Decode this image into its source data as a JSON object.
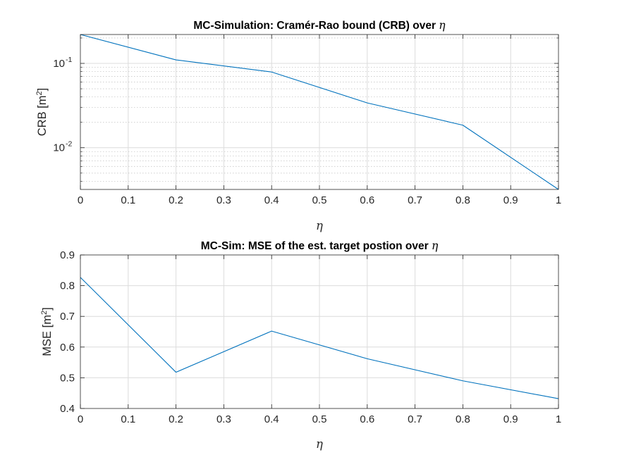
{
  "chart_data": [
    {
      "type": "line",
      "title": "MC-Simulation: Cramér-Rao bound (CRB) over",
      "title_symbol": "η",
      "xlabel": "η",
      "ylabel": "CRB [m",
      "ylabel_sup": "2",
      "ylabel_end": "]",
      "yscale": "log",
      "xlim": [
        0,
        1
      ],
      "ylim": [
        0.0032,
        0.22
      ],
      "x_ticks": [
        "0",
        "0.1",
        "0.2",
        "0.3",
        "0.4",
        "0.5",
        "0.6",
        "0.7",
        "0.8",
        "0.9",
        "1"
      ],
      "y_ticks": [
        {
          "base": "10",
          "exp": "-1"
        },
        {
          "base": "10",
          "exp": "-2"
        }
      ],
      "grid": true,
      "minor_grid": true,
      "line_color": "#0072bd",
      "x": [
        0,
        0.2,
        0.4,
        0.6,
        0.8,
        1.0
      ],
      "y": [
        0.22,
        0.11,
        0.079,
        0.034,
        0.0185,
        0.0032
      ]
    },
    {
      "type": "line",
      "title": "MC-Sim: MSE of the est. target postion over",
      "title_symbol": "η",
      "xlabel": "η",
      "ylabel": "MSE [m",
      "ylabel_sup": "2",
      "ylabel_end": "]",
      "yscale": "linear",
      "xlim": [
        0,
        1
      ],
      "ylim": [
        0.4,
        0.9
      ],
      "x_ticks": [
        "0",
        "0.1",
        "0.2",
        "0.3",
        "0.4",
        "0.5",
        "0.6",
        "0.7",
        "0.8",
        "0.9",
        "1"
      ],
      "y_ticks": [
        "0.4",
        "0.5",
        "0.6",
        "0.7",
        "0.8",
        "0.9"
      ],
      "grid": true,
      "minor_grid": false,
      "line_color": "#0072bd",
      "x": [
        0,
        0.2,
        0.4,
        0.6,
        0.8,
        1.0
      ],
      "y": [
        0.827,
        0.518,
        0.652,
        0.562,
        0.49,
        0.432
      ]
    }
  ]
}
